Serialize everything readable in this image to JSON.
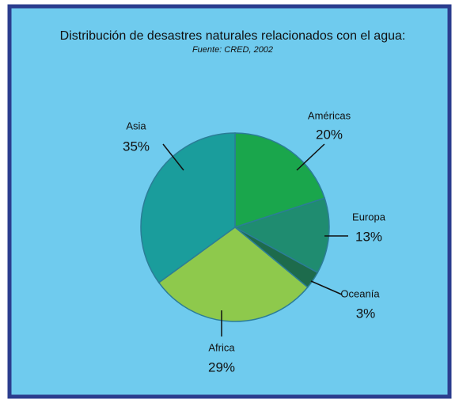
{
  "chart_data": {
    "type": "pie",
    "title": "Distribución de desastres naturales relacionados con el agua:",
    "subtitle": "Fuente: CRED, 2002",
    "categories": [
      "Américas",
      "Europa",
      "Oceanía",
      "Africa",
      "Asia"
    ],
    "values": [
      20,
      13,
      3,
      29,
      35
    ],
    "value_labels": [
      "20%",
      "13%",
      "3%",
      "29%",
      "35%"
    ],
    "colors": [
      "#1aa64c",
      "#1f8c70",
      "#1d6b4c",
      "#8ec94c",
      "#1a9d9c"
    ]
  }
}
